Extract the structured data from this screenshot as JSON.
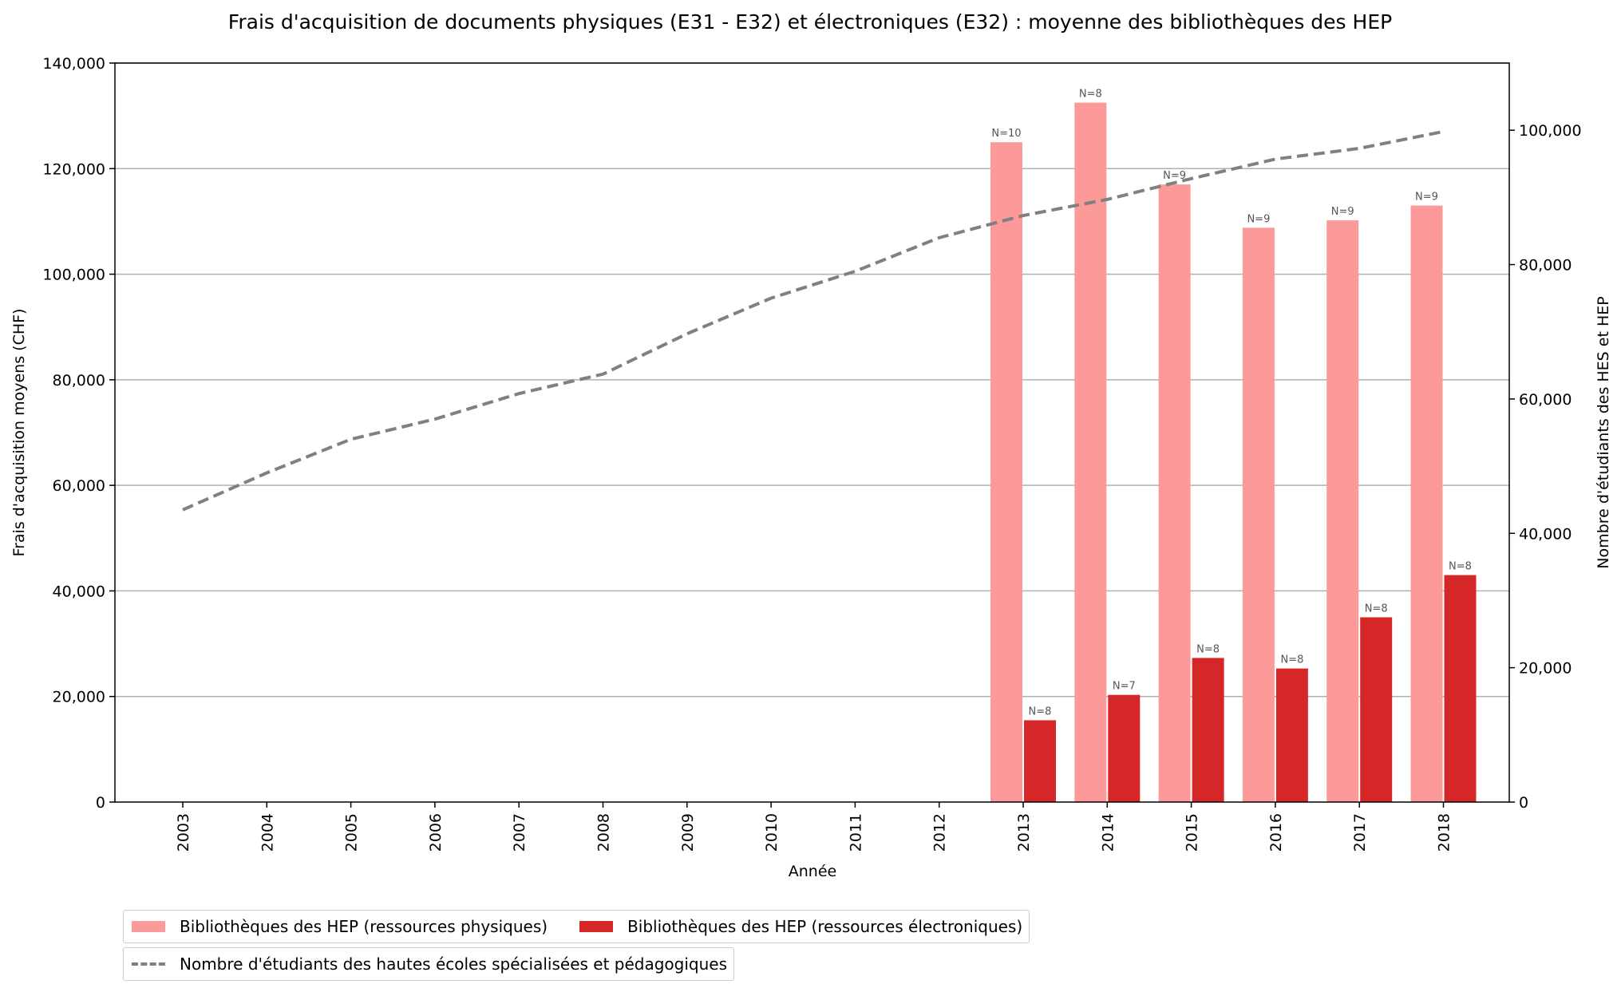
{
  "chart_data": {
    "type": "bar",
    "title": "Frais d'acquisition de documents physiques (E31 - E32) et électroniques (E32) : moyenne des bibliothèques des HEP",
    "xlabel": "Année",
    "ylabel": "Frais d'acquisition moyens (CHF)",
    "y2label": "Nombre d'étudiants des HES et HEP",
    "ylim": [
      0,
      140000
    ],
    "y2lim": [
      0,
      110000
    ],
    "yticks": [
      "0",
      "20,000",
      "40,000",
      "60,000",
      "80,000",
      "100,000",
      "120,000",
      "140,000"
    ],
    "y2ticks": [
      "0",
      "20,000",
      "40,000",
      "60,000",
      "80,000",
      "100,000"
    ],
    "categories": [
      "2003",
      "2004",
      "2005",
      "2006",
      "2007",
      "2008",
      "2009",
      "2010",
      "2011",
      "2012",
      "2013",
      "2014",
      "2015",
      "2016",
      "2017",
      "2018"
    ],
    "grid": "horizontal",
    "legend_placement": "bottom-left",
    "series": [
      {
        "name": "Bibliothèques des HEP (ressources physiques)",
        "kind": "bar",
        "axis": "left",
        "color": "#fb9a99",
        "values": [
          null,
          null,
          null,
          null,
          null,
          null,
          null,
          null,
          null,
          null,
          125000,
          132500,
          117000,
          108800,
          110200,
          113000
        ],
        "labels": [
          "",
          "",
          "",
          "",
          "",
          "",
          "",
          "",
          "",
          "",
          "N=10",
          "N=8",
          "N=9",
          "N=9",
          "N=9",
          "N=9"
        ]
      },
      {
        "name": "Bibliothèques des HEP (ressources électroniques)",
        "kind": "bar",
        "axis": "left",
        "color": "#d62728",
        "values": [
          null,
          null,
          null,
          null,
          null,
          null,
          null,
          null,
          null,
          null,
          15500,
          20300,
          27300,
          25300,
          35000,
          43000
        ],
        "labels": [
          "",
          "",
          "",
          "",
          "",
          "",
          "",
          "",
          "",
          "",
          "N=8",
          "N=7",
          "N=8",
          "N=8",
          "N=8",
          "N=8"
        ]
      },
      {
        "name": "Nombre d'étudiants des hautes écoles spécialisées et pédagogiques",
        "kind": "line",
        "style": "dashed",
        "axis": "right",
        "color": "#808080",
        "values": [
          43500,
          49000,
          54000,
          57000,
          60800,
          63700,
          69700,
          75000,
          79000,
          84000,
          87300,
          89700,
          92800,
          95700,
          97300,
          99800
        ]
      }
    ]
  }
}
